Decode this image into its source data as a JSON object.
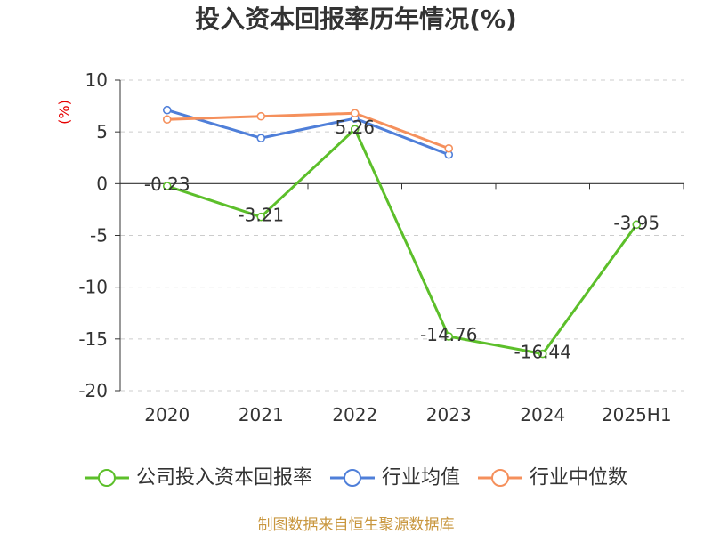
{
  "footer": "制图数据来自恒生聚源数据库",
  "colors": {
    "title": "#333333",
    "axis_label": "#e60000",
    "footer": "#c9973f",
    "grid": "#cccccc",
    "axis": "#333333"
  },
  "chart_data": {
    "type": "line",
    "title": "投入资本回报率历年情况(%)",
    "ylabel": "(%)",
    "categories": [
      "2020",
      "2021",
      "2022",
      "2023",
      "2024",
      "2025H1"
    ],
    "ylim": [
      -20,
      10
    ],
    "yticks": [
      10,
      5,
      0,
      -5,
      -10,
      -15,
      -20
    ],
    "grid": true,
    "legend": "bottom",
    "series": [
      {
        "name": "公司投入资本回报率",
        "color": "#5cbf2a",
        "values": [
          -0.23,
          -3.21,
          5.26,
          -14.76,
          -16.44,
          -3.95
        ],
        "data_labels": true
      },
      {
        "name": "行业均值",
        "color": "#4f7fd9",
        "values": [
          7.1,
          4.4,
          6.3,
          2.8,
          null,
          null
        ],
        "data_labels": false
      },
      {
        "name": "行业中位数",
        "color": "#f5905c",
        "values": [
          6.2,
          6.5,
          6.8,
          3.4,
          null,
          null
        ],
        "data_labels": false
      }
    ]
  }
}
